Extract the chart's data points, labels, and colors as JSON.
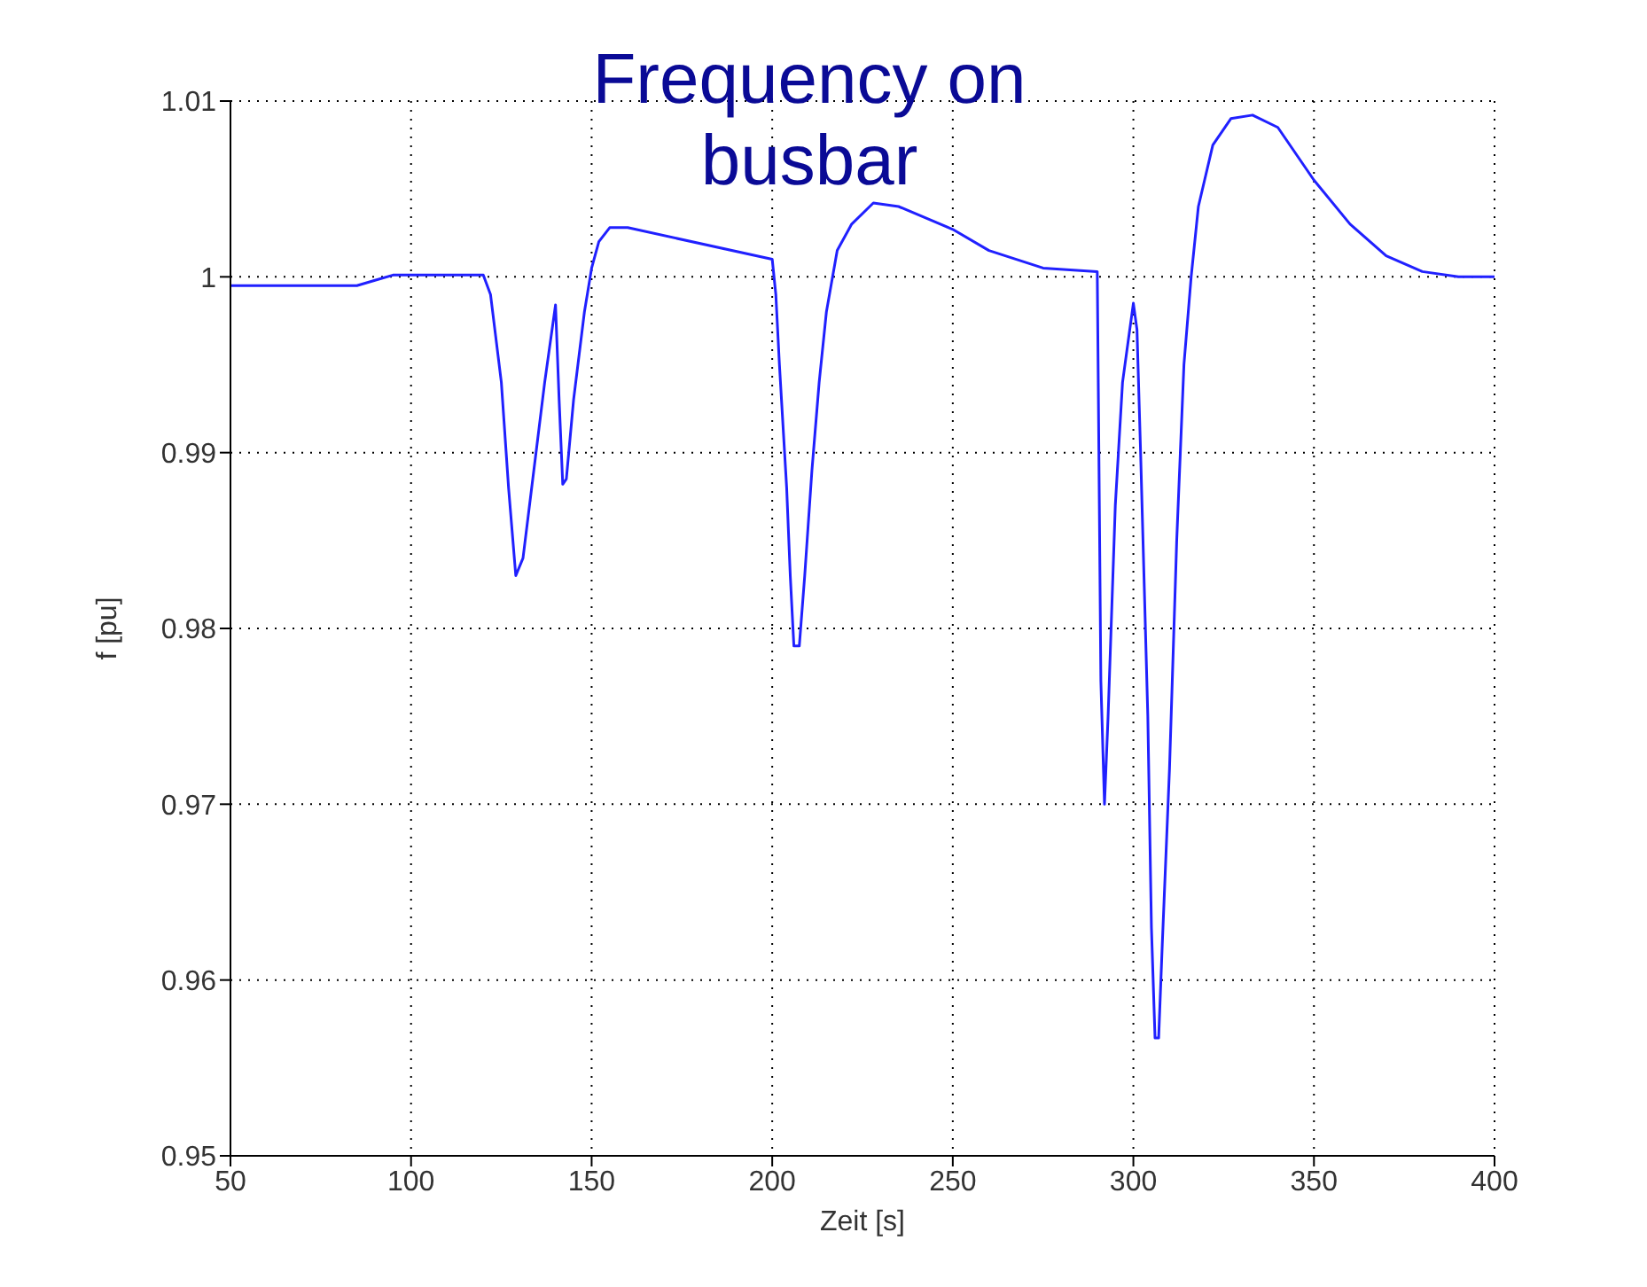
{
  "chart_data": {
    "type": "line",
    "title": "Frequency on\nbusbar",
    "xlabel": "Zeit [s]",
    "ylabel": "f [pu]",
    "xlim": [
      50,
      400
    ],
    "xticks": [
      50,
      100,
      150,
      200,
      250,
      300,
      350,
      400
    ],
    "ylim": [
      0.95,
      1.01
    ],
    "yticks": [
      0.95,
      0.96,
      0.97,
      0.98,
      0.99,
      1,
      1.01
    ],
    "grid": true,
    "marker": "none",
    "line_style": "solid",
    "x": [
      50,
      85,
      90,
      95,
      120,
      122,
      125,
      127,
      129,
      131,
      134,
      137,
      140,
      141,
      142,
      143,
      145,
      148,
      150,
      152,
      155,
      160,
      200,
      201,
      202,
      204,
      205,
      206,
      207.5,
      209,
      211,
      213,
      215,
      218,
      222,
      228,
      235,
      250,
      260,
      275,
      290,
      290.3,
      291,
      292,
      293,
      295,
      297,
      300,
      301,
      302,
      304,
      305,
      306,
      307,
      308,
      310,
      312,
      314,
      316,
      318,
      322,
      327,
      333,
      340,
      350,
      360,
      370,
      380,
      390,
      400
    ],
    "series": [
      {
        "color": "#2020ff",
        "values": [
          0.9995,
          0.9995,
          0.9998,
          1.0001,
          1.0001,
          0.999,
          0.994,
          0.988,
          0.983,
          0.984,
          0.989,
          0.994,
          0.9984,
          0.993,
          0.9882,
          0.9885,
          0.993,
          0.998,
          1.0005,
          1.002,
          1.0028,
          1.0028,
          1.001,
          0.999,
          0.995,
          0.988,
          0.983,
          0.979,
          0.979,
          0.983,
          0.989,
          0.994,
          0.998,
          1.0015,
          1.003,
          1.0042,
          1.004,
          1.0027,
          1.0015,
          1.0005,
          1.0003,
          0.9935,
          0.977,
          0.97,
          0.975,
          0.987,
          0.994,
          0.9985,
          0.997,
          0.99,
          0.975,
          0.963,
          0.9567,
          0.9567,
          0.962,
          0.972,
          0.985,
          0.995,
          1.0,
          1.004,
          1.0075,
          1.009,
          1.0092,
          1.0085,
          1.0055,
          1.003,
          1.0012,
          1.0003,
          1.0,
          1.0
        ]
      }
    ]
  }
}
